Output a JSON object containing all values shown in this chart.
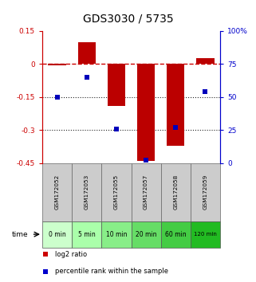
{
  "title": "GDS3030 / 5735",
  "samples": [
    "GSM172052",
    "GSM172053",
    "GSM172055",
    "GSM172057",
    "GSM172058",
    "GSM172059"
  ],
  "times": [
    "0 min",
    "5 min",
    "10 min",
    "20 min",
    "60 min",
    "120 min"
  ],
  "log2_ratio": [
    -0.005,
    0.1,
    -0.19,
    -0.44,
    -0.37,
    0.025
  ],
  "percentile_rank": [
    50,
    65,
    26,
    2,
    27,
    54
  ],
  "ylim_left": [
    -0.45,
    0.15
  ],
  "ylim_right": [
    0,
    100
  ],
  "yticks_left": [
    0.15,
    0.0,
    -0.15,
    -0.3,
    -0.45
  ],
  "yticks_right": [
    100,
    75,
    50,
    25,
    0
  ],
  "bar_color": "#bb0000",
  "dot_color": "#0000bb",
  "hline0_color": "#cc0000",
  "hline_dot_color": "#222222",
  "left_tick_color": "#cc0000",
  "right_tick_color": "#0000cc",
  "time_colors": [
    "#ccffcc",
    "#aaffaa",
    "#88ee88",
    "#66dd66",
    "#44cc44",
    "#22bb22"
  ],
  "gsm_color": "#cccccc",
  "legend_log2_color": "#cc0000",
  "legend_pct_color": "#0000cc",
  "bar_width": 0.6
}
